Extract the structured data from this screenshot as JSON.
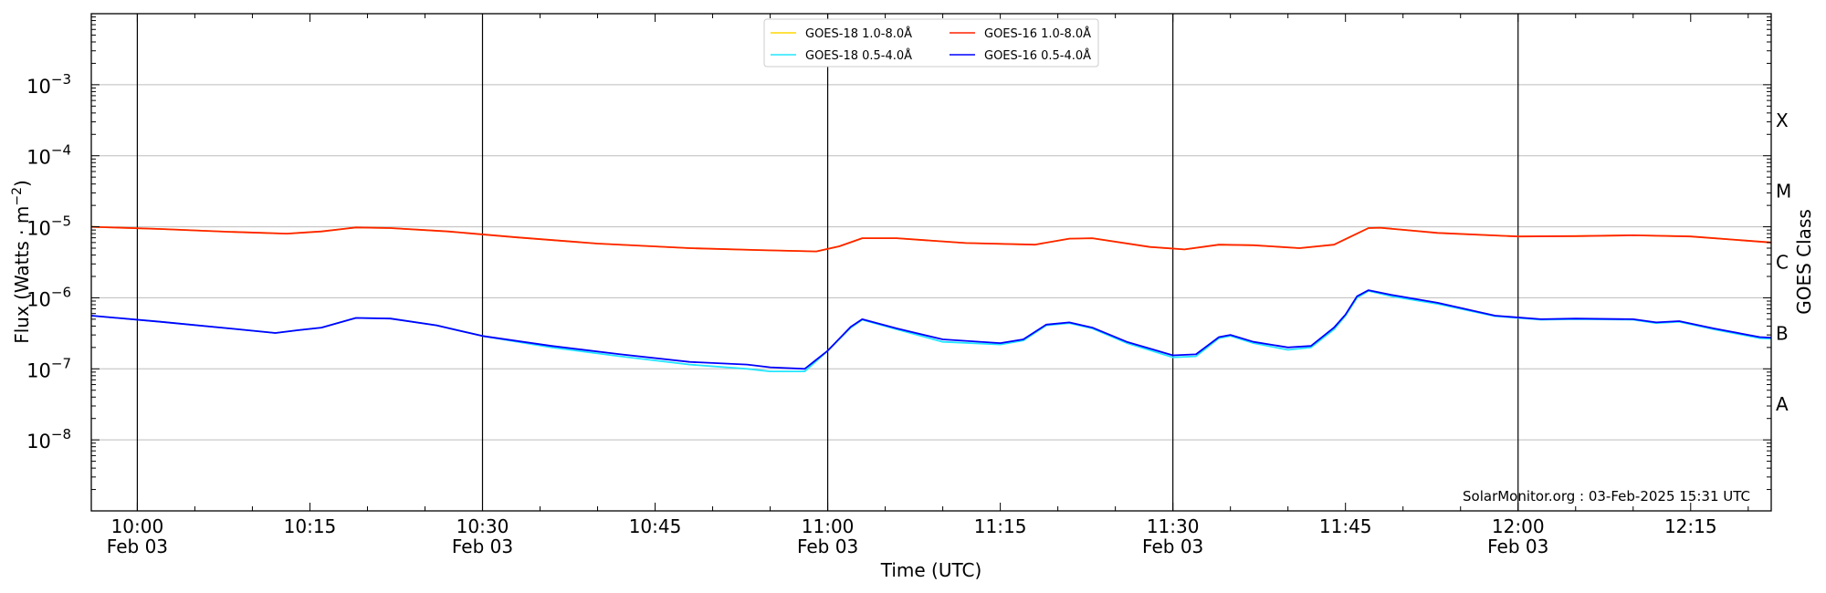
{
  "chart_data": {
    "type": "line",
    "xlabel": "Time (UTC)",
    "ylabel": "Flux (Watts · m",
    "ylabel_sup": "−2",
    "ylabel_close": ")",
    "right_label": "GOES Class",
    "yscale": "log",
    "ylim": [
      1e-09,
      0.01
    ],
    "xlim": [
      "09:56",
      "12:22"
    ],
    "y_ticks": [
      {
        "value": -8,
        "base": "10",
        "exp": "−8"
      },
      {
        "value": -7,
        "base": "10",
        "exp": "−7"
      },
      {
        "value": -6,
        "base": "10",
        "exp": "−6"
      },
      {
        "value": -5,
        "base": "10",
        "exp": "−5"
      },
      {
        "value": -4,
        "base": "10",
        "exp": "−4"
      },
      {
        "value": -3,
        "base": "10",
        "exp": "−3"
      }
    ],
    "x_ticks": [
      {
        "time": "10:00",
        "label": "10:00",
        "date": "Feb 03"
      },
      {
        "time": "10:15",
        "label": "10:15",
        "date": ""
      },
      {
        "time": "10:30",
        "label": "10:30",
        "date": "Feb 03"
      },
      {
        "time": "10:45",
        "label": "10:45",
        "date": ""
      },
      {
        "time": "11:00",
        "label": "11:00",
        "date": "Feb 03"
      },
      {
        "time": "11:15",
        "label": "11:15",
        "date": ""
      },
      {
        "time": "11:30",
        "label": "11:30",
        "date": "Feb 03"
      },
      {
        "time": "11:45",
        "label": "11:45",
        "date": ""
      },
      {
        "time": "12:00",
        "label": "12:00",
        "date": "Feb 03"
      },
      {
        "time": "12:15",
        "label": "12:15",
        "date": ""
      }
    ],
    "vlines": [
      "10:00",
      "10:30",
      "11:00",
      "11:30",
      "12:00"
    ],
    "class_labels": [
      {
        "label": "A",
        "log_flux": -7.5
      },
      {
        "label": "B",
        "log_flux": -6.5
      },
      {
        "label": "C",
        "log_flux": -5.5
      },
      {
        "label": "M",
        "log_flux": -4.5
      },
      {
        "label": "X",
        "log_flux": -3.5
      }
    ],
    "annotation": "SolarMonitor.org : 03-Feb-2025 15:31 UTC",
    "legend_position": "upper-center",
    "legend": [
      {
        "name": "GOES-18 1.0-8.0Å",
        "color": "#ffd700"
      },
      {
        "name": "GOES-18 0.5-4.0Å",
        "color": "#22e5ff"
      },
      {
        "name": "GOES-16 1.0-8.0Å",
        "color": "#ff2200"
      },
      {
        "name": "GOES-16 0.5-4.0Å",
        "color": "#0000ff"
      }
    ],
    "series": [
      {
        "name": "GOES-18 1.0-8.0Å",
        "color": "#ffd700",
        "points": [
          [
            "09:56",
            1e-05
          ],
          [
            "10:02",
            9.3e-06
          ],
          [
            "10:08",
            8.5e-06
          ],
          [
            "10:13",
            8e-06
          ],
          [
            "10:16",
            8.6e-06
          ],
          [
            "10:19",
            9.8e-06
          ],
          [
            "10:22",
            9.6e-06
          ],
          [
            "10:27",
            8.6e-06
          ],
          [
            "10:33",
            7.1e-06
          ],
          [
            "10:40",
            5.8e-06
          ],
          [
            "10:48",
            5e-06
          ],
          [
            "10:54",
            4.7e-06
          ],
          [
            "10:59",
            4.5e-06
          ],
          [
            "11:01",
            5.3e-06
          ],
          [
            "11:03",
            6.9e-06
          ],
          [
            "11:06",
            6.9e-06
          ],
          [
            "11:12",
            5.9e-06
          ],
          [
            "11:18",
            5.6e-06
          ],
          [
            "11:21",
            6.8e-06
          ],
          [
            "11:23",
            6.9e-06
          ],
          [
            "11:28",
            5.2e-06
          ],
          [
            "11:31",
            4.8e-06
          ],
          [
            "11:34",
            5.6e-06
          ],
          [
            "11:37",
            5.5e-06
          ],
          [
            "11:41",
            5e-06
          ],
          [
            "11:44",
            5.6e-06
          ],
          [
            "11:47",
            9.6e-06
          ],
          [
            "11:48",
            9.7e-06
          ],
          [
            "11:53",
            8.2e-06
          ],
          [
            "12:00",
            7.3e-06
          ],
          [
            "12:05",
            7.4e-06
          ],
          [
            "12:10",
            7.6e-06
          ],
          [
            "12:15",
            7.3e-06
          ],
          [
            "12:22",
            6e-06
          ]
        ]
      },
      {
        "name": "GOES-16 1.0-8.0Å",
        "color": "#ff2200",
        "points": [
          [
            "09:56",
            1e-05
          ],
          [
            "10:02",
            9.3e-06
          ],
          [
            "10:08",
            8.5e-06
          ],
          [
            "10:13",
            8e-06
          ],
          [
            "10:16",
            8.6e-06
          ],
          [
            "10:19",
            9.8e-06
          ],
          [
            "10:22",
            9.6e-06
          ],
          [
            "10:27",
            8.6e-06
          ],
          [
            "10:33",
            7.1e-06
          ],
          [
            "10:40",
            5.8e-06
          ],
          [
            "10:48",
            5e-06
          ],
          [
            "10:54",
            4.7e-06
          ],
          [
            "10:59",
            4.5e-06
          ],
          [
            "11:01",
            5.3e-06
          ],
          [
            "11:03",
            6.9e-06
          ],
          [
            "11:06",
            6.9e-06
          ],
          [
            "11:12",
            5.9e-06
          ],
          [
            "11:18",
            5.6e-06
          ],
          [
            "11:21",
            6.8e-06
          ],
          [
            "11:23",
            6.9e-06
          ],
          [
            "11:28",
            5.2e-06
          ],
          [
            "11:31",
            4.8e-06
          ],
          [
            "11:34",
            5.6e-06
          ],
          [
            "11:37",
            5.5e-06
          ],
          [
            "11:41",
            5e-06
          ],
          [
            "11:44",
            5.6e-06
          ],
          [
            "11:47",
            9.6e-06
          ],
          [
            "11:48",
            9.7e-06
          ],
          [
            "11:53",
            8.2e-06
          ],
          [
            "12:00",
            7.3e-06
          ],
          [
            "12:05",
            7.4e-06
          ],
          [
            "12:10",
            7.6e-06
          ],
          [
            "12:15",
            7.3e-06
          ],
          [
            "12:22",
            6e-06
          ]
        ]
      },
      {
        "name": "GOES-18 0.5-4.0Å",
        "color": "#22e5ff",
        "points": [
          [
            "09:56",
            5.6e-07
          ],
          [
            "10:02",
            4.6e-07
          ],
          [
            "10:08",
            3.7e-07
          ],
          [
            "10:12",
            3.2e-07
          ],
          [
            "10:14",
            3.5e-07
          ],
          [
            "10:16",
            3.8e-07
          ],
          [
            "10:19",
            5.2e-07
          ],
          [
            "10:22",
            5.1e-07
          ],
          [
            "10:26",
            4.1e-07
          ],
          [
            "10:30",
            2.9e-07
          ],
          [
            "10:36",
            2e-07
          ],
          [
            "10:42",
            1.5e-07
          ],
          [
            "10:48",
            1.15e-07
          ],
          [
            "10:53",
            1e-07
          ],
          [
            "10:55",
            9.2e-08
          ],
          [
            "10:58",
            9.2e-08
          ],
          [
            "11:00",
            1.8e-07
          ],
          [
            "11:02",
            3.8e-07
          ],
          [
            "11:03",
            4.9e-07
          ],
          [
            "11:06",
            3.6e-07
          ],
          [
            "11:10",
            2.4e-07
          ],
          [
            "11:15",
            2.2e-07
          ],
          [
            "11:17",
            2.5e-07
          ],
          [
            "11:19",
            4.1e-07
          ],
          [
            "11:21",
            4.4e-07
          ],
          [
            "11:23",
            3.7e-07
          ],
          [
            "11:26",
            2.3e-07
          ],
          [
            "11:30",
            1.45e-07
          ],
          [
            "11:32",
            1.5e-07
          ],
          [
            "11:34",
            2.7e-07
          ],
          [
            "11:35",
            2.9e-07
          ],
          [
            "11:37",
            2.3e-07
          ],
          [
            "11:40",
            1.85e-07
          ],
          [
            "11:42",
            2e-07
          ],
          [
            "11:44",
            3.6e-07
          ],
          [
            "11:45",
            5.6e-07
          ],
          [
            "11:46",
            1e-06
          ],
          [
            "11:47",
            1.25e-06
          ],
          [
            "11:49",
            1.05e-06
          ],
          [
            "11:53",
            8.2e-07
          ],
          [
            "11:58",
            5.5e-07
          ],
          [
            "12:02",
            4.9e-07
          ],
          [
            "12:05",
            5e-07
          ],
          [
            "12:10",
            4.9e-07
          ],
          [
            "12:12",
            4.4e-07
          ],
          [
            "12:14",
            4.6e-07
          ],
          [
            "12:17",
            3.6e-07
          ],
          [
            "12:21",
            2.7e-07
          ],
          [
            "12:22",
            2.65e-07
          ]
        ]
      },
      {
        "name": "GOES-16 0.5-4.0Å",
        "color": "#0000ff",
        "points": [
          [
            "09:56",
            5.6e-07
          ],
          [
            "10:02",
            4.6e-07
          ],
          [
            "10:08",
            3.7e-07
          ],
          [
            "10:12",
            3.2e-07
          ],
          [
            "10:14",
            3.5e-07
          ],
          [
            "10:16",
            3.8e-07
          ],
          [
            "10:19",
            5.2e-07
          ],
          [
            "10:22",
            5.1e-07
          ],
          [
            "10:26",
            4.1e-07
          ],
          [
            "10:30",
            2.9e-07
          ],
          [
            "10:36",
            2.1e-07
          ],
          [
            "10:42",
            1.6e-07
          ],
          [
            "10:48",
            1.25e-07
          ],
          [
            "10:53",
            1.15e-07
          ],
          [
            "10:55",
            1.05e-07
          ],
          [
            "10:58",
            1e-07
          ],
          [
            "11:00",
            1.8e-07
          ],
          [
            "11:02",
            3.9e-07
          ],
          [
            "11:03",
            5e-07
          ],
          [
            "11:06",
            3.7e-07
          ],
          [
            "11:10",
            2.6e-07
          ],
          [
            "11:15",
            2.3e-07
          ],
          [
            "11:17",
            2.6e-07
          ],
          [
            "11:19",
            4.2e-07
          ],
          [
            "11:21",
            4.5e-07
          ],
          [
            "11:23",
            3.8e-07
          ],
          [
            "11:26",
            2.4e-07
          ],
          [
            "11:30",
            1.55e-07
          ],
          [
            "11:32",
            1.6e-07
          ],
          [
            "11:34",
            2.8e-07
          ],
          [
            "11:35",
            3e-07
          ],
          [
            "11:37",
            2.4e-07
          ],
          [
            "11:40",
            2e-07
          ],
          [
            "11:42",
            2.1e-07
          ],
          [
            "11:44",
            3.8e-07
          ],
          [
            "11:45",
            5.8e-07
          ],
          [
            "11:46",
            1.05e-06
          ],
          [
            "11:47",
            1.28e-06
          ],
          [
            "11:49",
            1.1e-06
          ],
          [
            "11:53",
            8.5e-07
          ],
          [
            "11:58",
            5.6e-07
          ],
          [
            "12:02",
            5e-07
          ],
          [
            "12:05",
            5.1e-07
          ],
          [
            "12:10",
            5e-07
          ],
          [
            "12:12",
            4.5e-07
          ],
          [
            "12:14",
            4.7e-07
          ],
          [
            "12:17",
            3.7e-07
          ],
          [
            "12:21",
            2.8e-07
          ],
          [
            "12:22",
            2.75e-07
          ]
        ]
      }
    ]
  }
}
